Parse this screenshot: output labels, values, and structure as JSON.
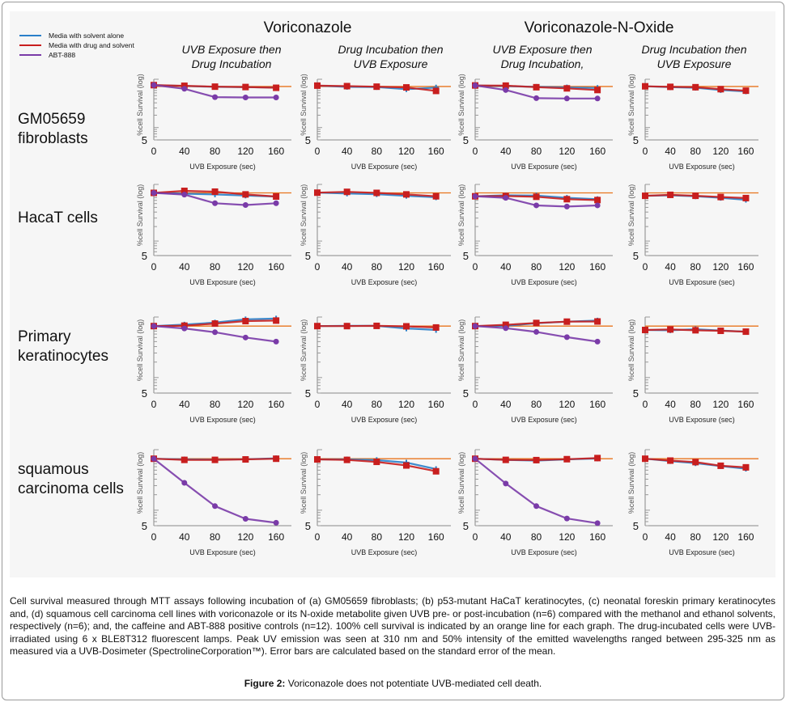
{
  "legend": [
    {
      "label": "Media with solvent alone",
      "color": "#2a7fc9"
    },
    {
      "label": "Media with drug and solvent",
      "color": "#c81e1e"
    },
    {
      "label": "ABT-888",
      "color": "#7a3ba8"
    }
  ],
  "columns": [
    {
      "title": "Voriconazole",
      "subs": [
        "UVB Exposure then Drug Incubation",
        "Drug Incubation then UVB Exposure"
      ]
    },
    {
      "title": "Voriconazole-N-Oxide",
      "subs": [
        "UVB Exposure then Drug Incubation,",
        "Drug Incubation then UVB Exposure"
      ]
    }
  ],
  "rows": [
    {
      "label_lines": [
        "GM05659",
        "fibroblasts"
      ]
    },
    {
      "label_lines": [
        "HacaT cells"
      ]
    },
    {
      "label_lines": [
        "Primary",
        "keratinocytes"
      ]
    },
    {
      "label_lines": [
        "squamous",
        "carcinoma cells"
      ]
    }
  ],
  "reference_line_color": "#e8741c",
  "chart_data": {
    "type": "line",
    "y_scale": "log",
    "ylabel": "%cell Survival (log)",
    "xlabel": "UVB Exposure (sec)",
    "x": [
      0,
      40,
      80,
      120,
      160
    ],
    "x_ticks": [
      "0",
      "40",
      "80",
      "120",
      "160"
    ],
    "y_tick_label": "5",
    "ylim": [
      5,
      150
    ],
    "reference_line": {
      "value": 100,
      "label": "100% cell survival"
    },
    "panels": [
      {
        "row": 0,
        "col": 0,
        "series": [
          {
            "name": "Media with solvent alone",
            "values": [
              108,
              103,
              98,
              96,
              94
            ]
          },
          {
            "name": "Media with drug and solvent",
            "values": [
              108,
              104,
              99,
              97,
              93
            ]
          },
          {
            "name": "ABT-888",
            "values": [
              108,
              88,
              55,
              54,
              54
            ]
          }
        ]
      },
      {
        "row": 0,
        "col": 1,
        "series": [
          {
            "name": "Media with solvent alone",
            "values": [
              105,
              98,
              97,
              86,
              94
            ]
          },
          {
            "name": "Media with drug and solvent",
            "values": [
              105,
              102,
              99,
              95,
              78
            ]
          }
        ]
      },
      {
        "row": 0,
        "col": 2,
        "series": [
          {
            "name": "Media with solvent alone",
            "values": [
              106,
              102,
              98,
              95,
              92
            ]
          },
          {
            "name": "Media with drug and solvent",
            "values": [
              106,
              105,
              96,
              90,
              82
            ]
          },
          {
            "name": "ABT-888",
            "values": [
              106,
              82,
              52,
              51,
              51
            ]
          }
        ]
      },
      {
        "row": 0,
        "col": 3,
        "series": [
          {
            "name": "Media with solvent alone",
            "values": [
              101,
              96,
              93,
              82,
              76
            ]
          },
          {
            "name": "Media with drug and solvent",
            "values": [
              101,
              98,
              96,
              86,
              79
            ]
          }
        ]
      },
      {
        "row": 1,
        "col": 0,
        "series": [
          {
            "name": "Media with solvent alone",
            "values": [
              100,
              96,
              93,
              88,
              84
            ]
          },
          {
            "name": "Media with drug and solvent",
            "values": [
              100,
              110,
              106,
              93,
              84
            ]
          },
          {
            "name": "ABT-888",
            "values": [
              100,
              92,
              61,
              56,
              61
            ]
          }
        ]
      },
      {
        "row": 1,
        "col": 1,
        "series": [
          {
            "name": "Media with solvent alone",
            "values": [
              101,
              97,
              94,
              87,
              81
            ]
          },
          {
            "name": "Media with drug and solvent",
            "values": [
              101,
              105,
              100,
              93,
              85
            ]
          }
        ]
      },
      {
        "row": 1,
        "col": 2,
        "series": [
          {
            "name": "Media with solvent alone",
            "values": [
              85,
              89,
              88,
              79,
              74
            ]
          },
          {
            "name": "Media with drug and solvent",
            "values": [
              85,
              86,
              83,
              74,
              71
            ]
          },
          {
            "name": "ABT-888",
            "values": [
              85,
              79,
              55,
              52,
              55
            ]
          }
        ]
      },
      {
        "row": 1,
        "col": 3,
        "series": [
          {
            "name": "Media with solvent alone",
            "values": [
              87,
              89,
              85,
              79,
              72
            ]
          },
          {
            "name": "Media with drug and solvent",
            "values": [
              87,
              91,
              87,
              82,
              78
            ]
          }
        ]
      },
      {
        "row": 2,
        "col": 0,
        "series": [
          {
            "name": "Media with solvent alone",
            "values": [
              100,
              107,
              117,
              135,
              140
            ]
          },
          {
            "name": "Media with drug and solvent",
            "values": [
              100,
              102,
              112,
              125,
              128
            ]
          },
          {
            "name": "ABT-888",
            "values": [
              100,
              90,
              76,
              60,
              50
            ]
          }
        ]
      },
      {
        "row": 2,
        "col": 1,
        "series": [
          {
            "name": "Media with solvent alone",
            "values": [
              100,
              101,
              101,
              90,
              84
            ]
          },
          {
            "name": "Media with drug and solvent",
            "values": [
              100,
              100,
              101,
              99,
              94
            ]
          }
        ]
      },
      {
        "row": 2,
        "col": 2,
        "series": [
          {
            "name": "Media with solvent alone",
            "values": [
              100,
              101,
              114,
              122,
              128
            ]
          },
          {
            "name": "Media with drug and solvent",
            "values": [
              100,
              106,
              115,
              122,
              123
            ]
          },
          {
            "name": "ABT-888",
            "values": [
              100,
              91,
              77,
              61,
              50
            ]
          }
        ]
      },
      {
        "row": 2,
        "col": 3,
        "series": [
          {
            "name": "Media with solvent alone",
            "values": [
              84,
              83,
              87,
              82,
              78
            ]
          },
          {
            "name": "Media with drug and solvent",
            "values": [
              84,
              86,
              83,
              81,
              78
            ]
          }
        ]
      },
      {
        "row": 3,
        "col": 0,
        "series": [
          {
            "name": "Media with solvent alone",
            "values": [
              100,
              97,
              96,
              98,
              102
            ]
          },
          {
            "name": "Media with drug and solvent",
            "values": [
              100,
              95,
              95,
              97,
              100
            ]
          },
          {
            "name": "ABT-888",
            "values": [
              100,
              34,
              12,
              6.8,
              5.7
            ]
          }
        ]
      },
      {
        "row": 3,
        "col": 1,
        "series": [
          {
            "name": "Media with solvent alone",
            "values": [
              97,
              97,
              94,
              84,
              63
            ]
          },
          {
            "name": "Media with drug and solvent",
            "values": [
              97,
              95,
              87,
              74,
              57
            ]
          }
        ]
      },
      {
        "row": 3,
        "col": 2,
        "series": [
          {
            "name": "Media with solvent alone",
            "values": [
              100,
              95,
              92,
              97,
              101
            ]
          },
          {
            "name": "Media with drug and solvent",
            "values": [
              100,
              95,
              94,
              98,
              103
            ]
          },
          {
            "name": "ABT-888",
            "values": [
              100,
              33,
              12,
              6.9,
              5.6
            ]
          }
        ]
      },
      {
        "row": 3,
        "col": 3,
        "series": [
          {
            "name": "Media with solvent alone",
            "values": [
              100,
              90,
              82,
              72,
              64
            ]
          },
          {
            "name": "Media with drug and solvent",
            "values": [
              100,
              92,
              86,
              73,
              68
            ]
          }
        ]
      }
    ]
  },
  "caption": "Cell survival measured through MTT assays following incubation of (a) GM05659 fibroblasts; (b) p53-mutant HaCaT keratinocytes, (c) neonatal foreskin primary keratinocytes and, (d) squamous cell carcinoma cell lines with voriconazole or its N-oxide metabolite given UVB pre- or post-incubation (n=6) compared with the methanol and ethanol solvents, respectively (n=6); and, the caffeine and ABT-888 positive controls (n=12). 100% cell survival is indicated by an orange line for each graph. The drug-incubated cells were UVB-irradiated using 6 x BLE8T312 fluorescent lamps. Peak UV emission was seen at 310 nm and 50% intensity of the emitted wavelengths ranged between 295-325 nm as measured via a UVB-Dosimeter (SpectrolineCorporation™). Error bars are calculated based on the standard error of the mean.",
  "figure_title": {
    "label": "Figure 2:",
    "text": " Voriconazole does not potentiate UVB-mediated cell death."
  }
}
